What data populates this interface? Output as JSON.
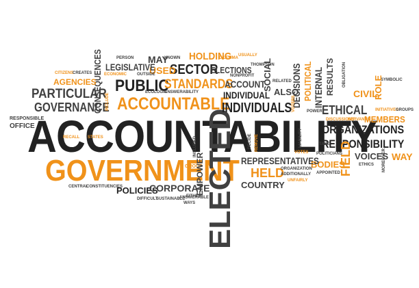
{
  "colors": {
    "dark": "#222222",
    "gray": "#404040",
    "orange": "#f0921a",
    "background": "#ffffff"
  },
  "words": {
    "accountability": "ACCOUNTABILITY",
    "government": "GOVERNMENT",
    "elected": "ELECTED",
    "accountable": "ACCOUNTABLE",
    "public": "PUBLIC",
    "standards": "STANDARDS",
    "sector": "SECTOR",
    "used": "USED",
    "holding": "HOLDING",
    "legislative": "LEGISLATIVE",
    "may": "MAY",
    "particular": "PARTICULAR",
    "governance": "GOVERNANCE",
    "consequences": "CONSEQUENCES",
    "agencies": "AGENCIES",
    "citizens": "CITIZENS",
    "creates": "CREATES",
    "economic": "ECONOMIC",
    "include": "INCLUDE",
    "responsible": "RESPONSIBLE",
    "office": "OFFICE",
    "person": "PERSON",
    "outside": "OUTSIDE",
    "known": "KNOWN",
    "dilemma": "DILEMMA",
    "usually": "USUALLY",
    "elections": "ELECTIONS",
    "thompson": "THOMPSON",
    "nonprofit": "NONPROFIT",
    "account": "ACCOUNT",
    "related": "RELATED",
    "individual": "INDIVIDUAL",
    "individuals": "INDIVIDUALS",
    "also": "ALSO",
    "social": "SOCIAL",
    "ecologic": "ECOLOGIC",
    "answerability": "ANSWERABILITY",
    "decisions": "DECISIONS",
    "political": "POLITICAL",
    "internal": "INTERNAL",
    "results": "RESULTS",
    "obligation": "OBLIGATION",
    "symbolic": "SYMBOLIC",
    "civil": "CIVIL",
    "role": "ROLE",
    "ethical": "ETHICAL",
    "initiatives": "INITIATIVES",
    "groups": "GROUPS",
    "members": "MEMBERS",
    "voters": "VOTERS",
    "power": "POWER",
    "organizations": "ORGANIZATIONS",
    "responsibility": "RESPONSIBILITY",
    "discussions": "DISCUSSIONS",
    "servants": "SERVANTS",
    "way": "WAY",
    "voices": "VOICES",
    "moreover": "MOREOVER",
    "ethics": "ETHICS",
    "take": "TAKE",
    "politicians": "POLITICIANS",
    "field": "FIELD",
    "bodies": "BODIES",
    "appointed": "APPOINTED",
    "votes": "VOTES",
    "representatives": "REPRESENTATIVES",
    "held": "HELD",
    "organization": "ORGANIZATION",
    "additionally": "ADDITIONALLY",
    "unfairly": "UNFAIRLY",
    "country": "COUNTRY",
    "remove": "REMOVE",
    "liability": "LIABILITY",
    "decide": "DECIDE",
    "recall": "RECALL",
    "states": "STATES",
    "group": "GROUP",
    "empower": "EMPOWER",
    "either": "EITHER",
    "included": "INCLUDED",
    "policies": "POLICIES",
    "corporate": "CORPORATE",
    "central": "CENTRAL",
    "constituencies": "CONSTITUENCIES",
    "difficult": "DIFFICULT",
    "sustainable": "SUSTAINABLE",
    "answerable": "ANSWERABLE",
    "ways": "WAYS"
  }
}
